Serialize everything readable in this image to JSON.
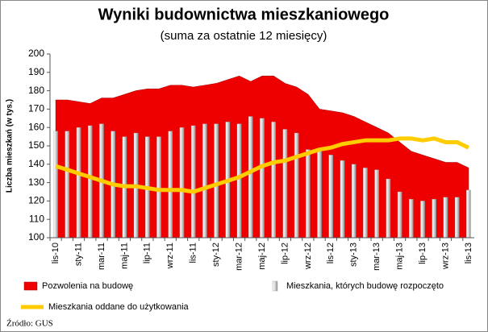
{
  "chart_data": {
    "type": "combo",
    "title": "Wyniki budownictwa mieszkaniowego",
    "subtitle": "(suma za ostatnie 12 miesięcy)",
    "y_label": "Liczba mieszkań (w tys.)",
    "source": "Źródło: GUS",
    "categories": [
      "lis-10",
      null,
      "sty-11",
      null,
      "mar-11",
      null,
      "maj-11",
      null,
      "lip-11",
      null,
      "wrz-11",
      null,
      "lis-11",
      null,
      "sty-12",
      null,
      "mar-12",
      null,
      "maj-12",
      null,
      "lip-12",
      null,
      "wrz-12",
      null,
      "lis-12",
      null,
      "sty-13",
      null,
      "mar-13",
      null,
      "maj-13",
      null,
      "lip-13",
      null,
      "wrz-13",
      null,
      "lis-13"
    ],
    "ylim": [
      100,
      200
    ],
    "yticks": [
      100,
      110,
      120,
      130,
      140,
      150,
      160,
      170,
      180,
      190,
      200
    ],
    "series": [
      {
        "name": "Pozwolenia na budowę",
        "type": "area",
        "color": "#ee0000",
        "values": [
          175,
          175,
          174,
          173,
          176,
          176,
          178,
          180,
          181,
          181,
          183,
          183,
          182,
          183,
          184,
          186,
          188,
          185,
          188,
          188,
          184,
          182,
          178,
          170,
          169,
          168,
          166,
          163,
          160,
          157,
          152,
          147,
          145,
          143,
          141,
          141,
          138
        ]
      },
      {
        "name": "Mieszkania, których budowę rozpoczęto",
        "type": "bar",
        "color": "#c8c8c8",
        "values": [
          158,
          158,
          160,
          161,
          162,
          158,
          155,
          157,
          155,
          155,
          158,
          160,
          161,
          162,
          162,
          163,
          162,
          166,
          165,
          163,
          159,
          157,
          148,
          147,
          145,
          142,
          140,
          138,
          137,
          132,
          125,
          121,
          120,
          121,
          122,
          122,
          126
        ]
      },
      {
        "name": "Mieszkania oddane do użytkowania",
        "type": "line",
        "color": "#ffcc00",
        "values": [
          139,
          137,
          135,
          133,
          131,
          129,
          128,
          128,
          127,
          126,
          126,
          126,
          125,
          127,
          129,
          131,
          133,
          136,
          139,
          141,
          142,
          144,
          146,
          148,
          149,
          151,
          152,
          153,
          153,
          153,
          154,
          154,
          153,
          154,
          152,
          152,
          149
        ]
      }
    ]
  }
}
